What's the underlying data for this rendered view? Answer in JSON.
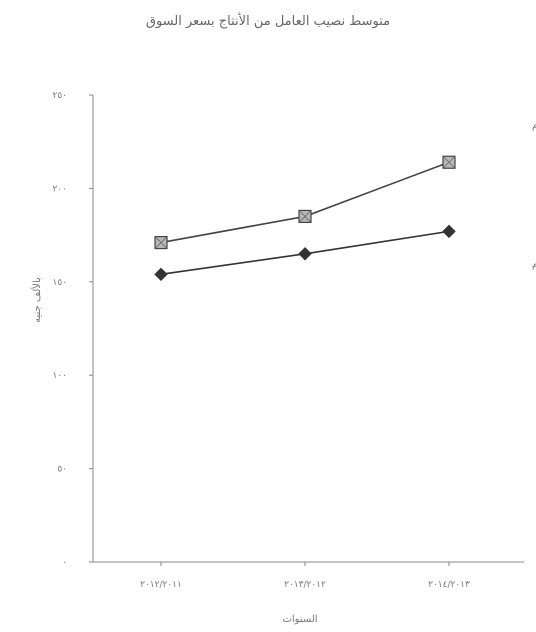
{
  "chart_data": {
    "type": "line",
    "title": "متوسط نصيب العامل من الأنتاج بسعر السوق",
    "xlabel": "السنوات",
    "ylabel": "بالألف جنيه",
    "categories": [
      "٢٠١٢/٢٠١١",
      "٢٠١٣/٢٠١٢",
      "٢٠١٤/٢٠١٣"
    ],
    "ylim": [
      0,
      250
    ],
    "yticks": [
      0,
      50,
      100,
      150,
      200,
      250
    ],
    "ytick_labels": [
      "٠",
      "٥٠",
      "١٠٠",
      "١٥٠",
      "٢٠٠",
      "٢٥٠"
    ],
    "grid": false,
    "series": [
      {
        "name": "القطاع العام",
        "values": [
          171,
          185,
          214
        ],
        "marker": "square",
        "color": "#444444"
      },
      {
        "name": "قطاع الأعمال العام",
        "values": [
          154,
          165,
          177
        ],
        "marker": "diamond",
        "color": "#333333"
      }
    ]
  }
}
